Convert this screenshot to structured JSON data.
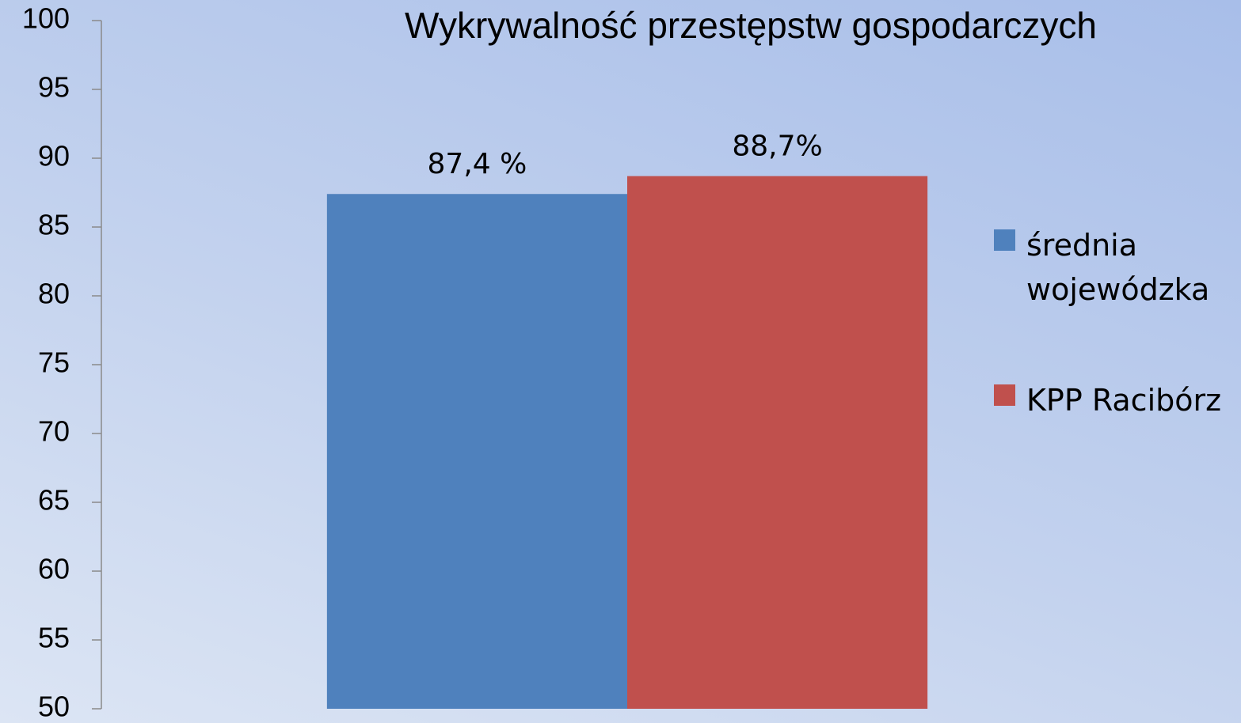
{
  "chart_data": {
    "type": "bar",
    "title": "Wykrywalność przestępstw gospodarczych",
    "categories": [
      null
    ],
    "series": [
      {
        "name": "średnia wojewódzka",
        "color": "#4f81bd",
        "values": [
          87.4
        ],
        "value_labels": [
          "87,4 %"
        ]
      },
      {
        "name": "KPP Racibórz",
        "color": "#c0504d",
        "values": [
          88.7
        ],
        "value_labels": [
          "88,7%"
        ]
      }
    ],
    "ylim": [
      50,
      100
    ],
    "yticks": [
      50,
      55,
      60,
      65,
      70,
      75,
      80,
      85,
      90,
      95,
      100
    ],
    "grid": false,
    "legend": "right"
  }
}
